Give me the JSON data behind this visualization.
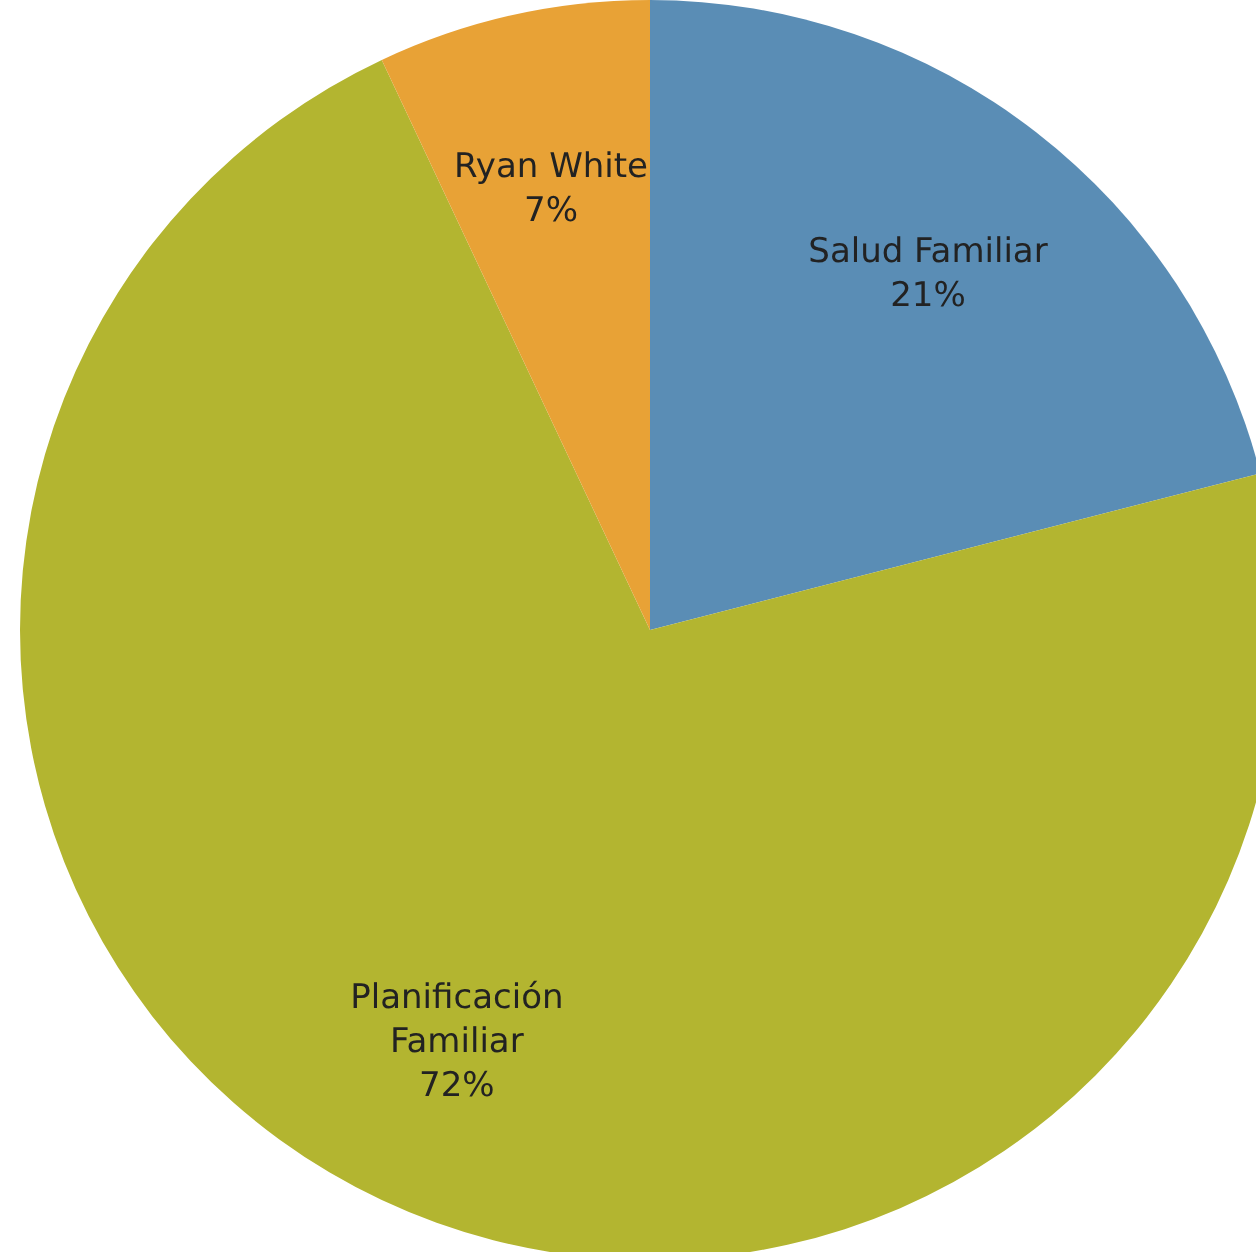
{
  "chart_data": {
    "type": "pie",
    "categories": [
      "Salud Familiar",
      "Planificación Familiar",
      "Ryan White"
    ],
    "values": [
      21,
      72,
      7
    ],
    "colors": [
      "#5a8db5",
      "#b3b530",
      "#e8a236"
    ],
    "value_labels": [
      "21%",
      "72%",
      "7%"
    ]
  }
}
